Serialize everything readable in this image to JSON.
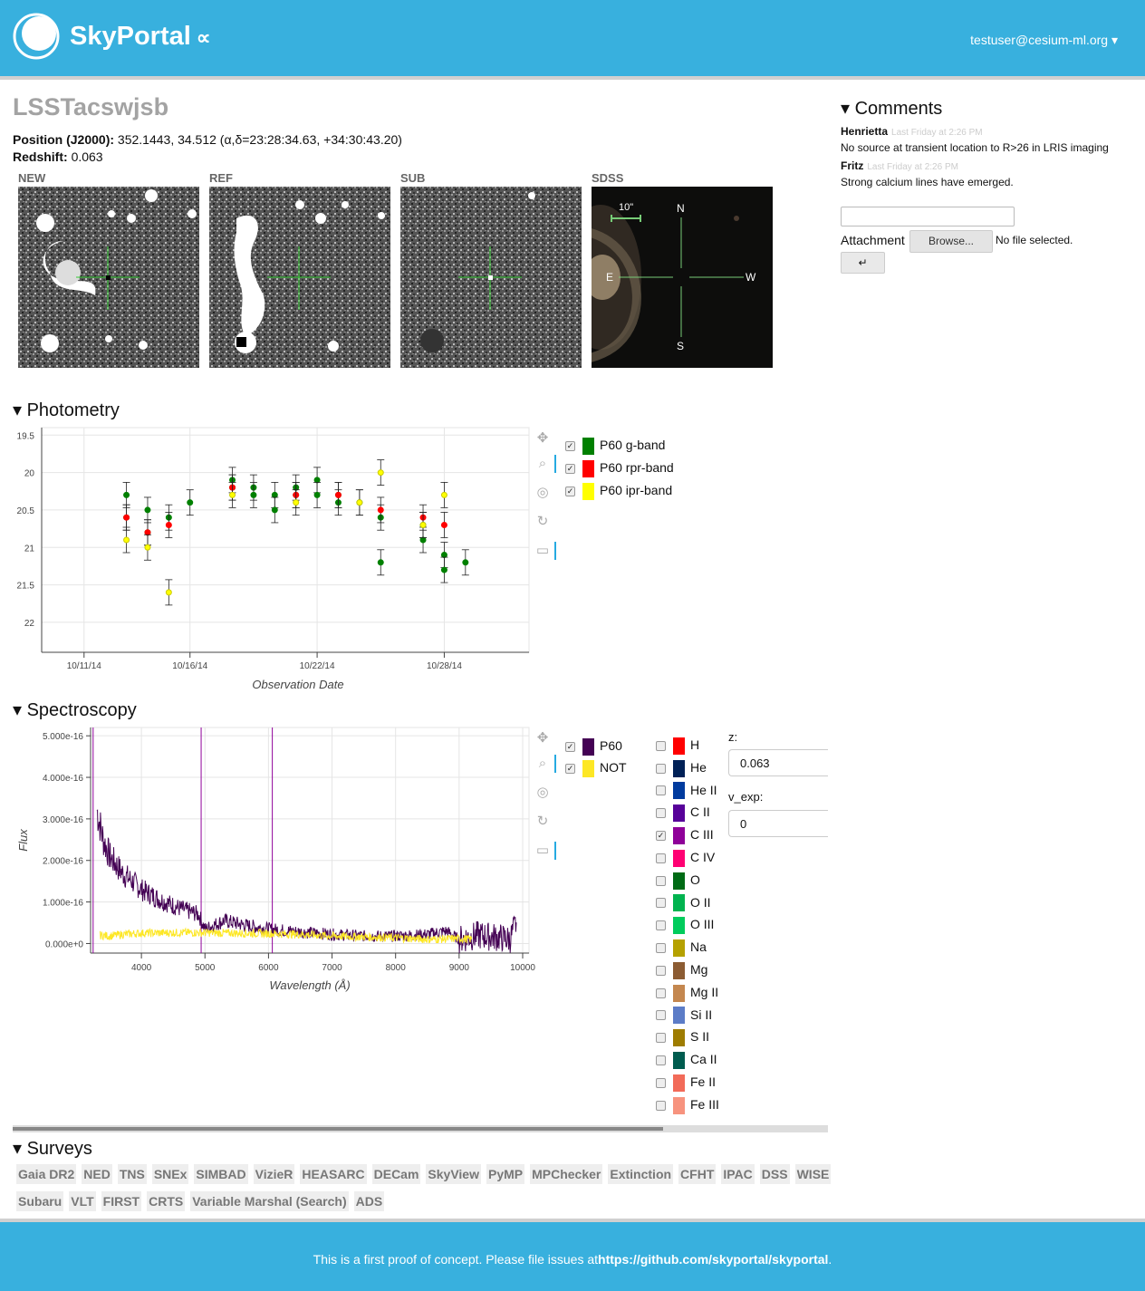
{
  "header": {
    "brand": "SkyPortal",
    "brand_symbol": "∝",
    "user": "testuser@cesium-ml.org ▾"
  },
  "source": {
    "name": "LSSTacswjsb",
    "position_label": "Position (J2000):",
    "position_value": "352.1443, 34.512 (α,δ=23:28:34.63, +34:30:43.20)",
    "redshift_label": "Redshift:",
    "redshift_value": "0.063"
  },
  "thumbnails": [
    {
      "label": "NEW"
    },
    {
      "label": "REF"
    },
    {
      "label": "SUB"
    },
    {
      "label": "SDSS",
      "scale": "10\"",
      "north": "N",
      "east": "E",
      "west": "W",
      "south": "S"
    }
  ],
  "photometry": {
    "title": "▾ Photometry",
    "legend": [
      {
        "label": "P60 g-band",
        "color": "#008000",
        "checked": true
      },
      {
        "label": "P60 rpr-band",
        "color": "#ff0000",
        "checked": true
      },
      {
        "label": "P60 ipr-band",
        "color": "#ffff00",
        "checked": true
      }
    ]
  },
  "spectroscopy": {
    "title": "▾ Spectroscopy",
    "legend": [
      {
        "label": "P60",
        "color": "#440154",
        "checked": true
      },
      {
        "label": "NOT",
        "color": "#fde725",
        "checked": true
      }
    ],
    "lines": [
      {
        "label": "H",
        "color": "#ff0000",
        "checked": false
      },
      {
        "label": "He",
        "color": "#002157",
        "checked": false
      },
      {
        "label": "He II",
        "color": "#003b9e",
        "checked": false
      },
      {
        "label": "C II",
        "color": "#570199",
        "checked": false
      },
      {
        "label": "C III",
        "color": "#8f0199",
        "checked": true
      },
      {
        "label": "C IV",
        "color": "#ff0073",
        "checked": false
      },
      {
        "label": "O",
        "color": "#006b15",
        "checked": false
      },
      {
        "label": "O II",
        "color": "#00b34f",
        "checked": false
      },
      {
        "label": "O III",
        "color": "#00cc5c",
        "checked": false
      },
      {
        "label": "Na",
        "color": "#b5a100",
        "checked": false
      },
      {
        "label": "Mg",
        "color": "#8c5c33",
        "checked": false
      },
      {
        "label": "Mg II",
        "color": "#c4874f",
        "checked": false
      },
      {
        "label": "Si II",
        "color": "#5c7cc7",
        "checked": false
      },
      {
        "label": "S II",
        "color": "#9e7c00",
        "checked": false
      },
      {
        "label": "Ca II",
        "color": "#005c4f",
        "checked": false
      },
      {
        "label": "Fe II",
        "color": "#f26b59",
        "checked": false
      },
      {
        "label": "Fe III",
        "color": "#f7937e",
        "checked": false
      }
    ],
    "z_label": "z:",
    "z_value": "0.063",
    "vexp_label": "v_exp:",
    "vexp_value": "0"
  },
  "surveys": {
    "title": "▾ Surveys",
    "buttons": [
      "Gaia DR2",
      "NED",
      "TNS",
      "SNEx",
      "SIMBAD",
      "VizieR",
      "HEASARC",
      "DECam",
      "SkyView",
      "PyMP",
      "MPChecker",
      "Extinction",
      "CFHT",
      "IPAC",
      "DSS",
      "WISE",
      "Subaru",
      "VLT",
      "FIRST",
      "CRTS",
      "Variable Marshal (Search)",
      "ADS"
    ]
  },
  "comments": {
    "title": "▾ Comments",
    "items": [
      {
        "author": "Henrietta",
        "time": "Last Friday at 2:26 PM",
        "text": "No source at transient location to R>26 in LRIS imaging"
      },
      {
        "author": "Fritz",
        "time": "Last Friday at 2:26 PM",
        "text": "Strong calcium lines have emerged."
      }
    ],
    "attachment_label": "Attachment",
    "browse_label": "Browse...",
    "no_file": "No file selected.",
    "submit_label": "↵"
  },
  "footer": {
    "text": "This is a first proof of concept. Please file issues at",
    "link": "https://github.com/skyportal/skyportal",
    "suffix": "."
  },
  "chart_data": [
    {
      "type": "scatter",
      "title": "",
      "xlabel": "Observation Date",
      "ylabel": "",
      "x_ticks": [
        "10/11/14",
        "10/16/14",
        "10/22/14",
        "10/28/14"
      ],
      "y_ticks": [
        19.5,
        20,
        20.5,
        21,
        21.5,
        22
      ],
      "ylim": [
        22.4,
        19.4
      ],
      "y_inverted": true,
      "series": [
        {
          "name": "P60 g-band",
          "color": "#008000",
          "x": [
            "2014-10-13",
            "2014-10-13",
            "2014-10-14",
            "2014-10-14",
            "2014-10-15",
            "2014-10-16",
            "2014-10-18",
            "2014-10-18",
            "2014-10-19",
            "2014-10-19",
            "2014-10-20",
            "2014-10-20",
            "2014-10-21",
            "2014-10-21",
            "2014-10-22",
            "2014-10-22",
            "2014-10-23",
            "2014-10-23",
            "2014-10-24",
            "2014-10-25",
            "2014-10-25",
            "2014-10-27",
            "2014-10-27",
            "2014-10-28",
            "2014-10-28",
            "2014-10-29"
          ],
          "y": [
            20.3,
            20.6,
            20.5,
            20.8,
            20.6,
            20.4,
            20.1,
            20.2,
            20.2,
            20.3,
            20.3,
            20.5,
            20.2,
            20.3,
            20.1,
            20.3,
            20.3,
            20.4,
            20.4,
            20.6,
            21.2,
            20.7,
            20.9,
            21.1,
            21.3,
            21.2
          ]
        },
        {
          "name": "P60 rpr-band",
          "color": "#ff0000",
          "x": [
            "2014-10-13",
            "2014-10-14",
            "2014-10-15",
            "2014-10-18",
            "2014-10-21",
            "2014-10-23",
            "2014-10-25",
            "2014-10-27",
            "2014-10-28"
          ],
          "y": [
            20.6,
            20.8,
            20.7,
            20.2,
            20.3,
            20.3,
            20.5,
            20.6,
            20.7
          ]
        },
        {
          "name": "P60 ipr-band",
          "color": "#ffff00",
          "x": [
            "2014-10-13",
            "2014-10-14",
            "2014-10-15",
            "2014-10-18",
            "2014-10-21",
            "2014-10-24",
            "2014-10-25",
            "2014-10-27",
            "2014-10-28"
          ],
          "y": [
            20.9,
            21.0,
            21.6,
            20.3,
            20.4,
            20.4,
            20.0,
            20.7,
            20.3
          ]
        }
      ]
    },
    {
      "type": "line",
      "title": "",
      "xlabel": "Wavelength (Å)",
      "ylabel": "Flux",
      "xlim": [
        3200,
        10100
      ],
      "ylim": [
        -2.3e-17,
        5.2e-16
      ],
      "x_ticks": [
        4000,
        5000,
        6000,
        7000,
        8000,
        9000,
        10000
      ],
      "y_ticks": [
        "5.000e-16",
        "4.000e-16",
        "3.000e-16",
        "2.000e-16",
        "1.000e-16",
        "0.000e+0"
      ],
      "vlines": [
        {
          "name": "C III",
          "x": [
            3240,
            4940,
            6060
          ],
          "color": "#8f0199"
        }
      ],
      "series": [
        {
          "name": "P60",
          "color": "#440154",
          "x": [
            3300,
            3400,
            3500,
            3700,
            4000,
            4300,
            4600,
            4900,
            5000,
            5300,
            5600,
            6000,
            6500,
            7000,
            7500,
            8000,
            8500,
            8800,
            9000,
            9300,
            9600,
            9800,
            9900
          ],
          "y": [
            3.2e-16,
            2.5e-16,
            2.1e-16,
            1.7e-16,
            1.3e-16,
            1.05e-16,
            8.5e-17,
            7e-17,
            3.5e-17,
            5.5e-17,
            4.5e-17,
            3.5e-17,
            2.8e-17,
            2.2e-17,
            1.8e-17,
            1.8e-17,
            2.2e-17,
            3e-17,
            1e-17,
            2e-17,
            1.5e-17,
            1e-17,
            5e-17
          ]
        },
        {
          "name": "NOT",
          "color": "#fde725",
          "x": [
            3350,
            3500,
            3700,
            4000,
            4500,
            5000,
            5500,
            6000,
            6500,
            7000,
            7500,
            8000,
            8500,
            9000,
            9200
          ],
          "y": [
            2e-17,
            1.8e-17,
            2.2e-17,
            2.5e-17,
            2.6e-17,
            2.6e-17,
            2.5e-17,
            2.4e-17,
            2.2e-17,
            1.8e-17,
            1.6e-17,
            1.4e-17,
            1e-17,
            1.2e-17,
            1e-17
          ]
        }
      ]
    }
  ]
}
